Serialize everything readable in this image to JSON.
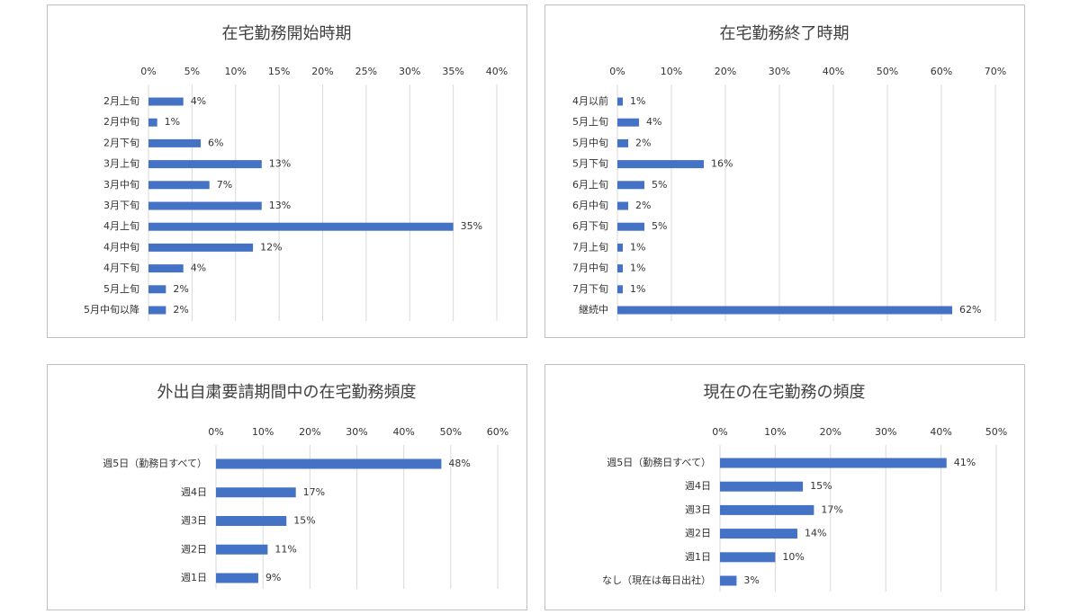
{
  "chart_data": [
    {
      "type": "bar",
      "title": "在宅勤務開始時期",
      "categories": [
        "2月上旬",
        "2月中旬",
        "2月下旬",
        "3月上旬",
        "3月中旬",
        "3月下旬",
        "4月上旬",
        "4月中旬",
        "4月下旬",
        "5月上旬",
        "5月中旬以降"
      ],
      "values": [
        4,
        1,
        6,
        13,
        7,
        13,
        35,
        12,
        4,
        2,
        2
      ],
      "value_labels": [
        "4%",
        "1%",
        "6%",
        "13%",
        "7%",
        "13%",
        "35%",
        "12%",
        "4%",
        "2%",
        "2%"
      ],
      "color": "#4472c4",
      "grid": true,
      "xlim": [
        0,
        40
      ],
      "xticks": [
        {
          "value": 0,
          "label": "0%"
        },
        {
          "value": 5,
          "label": "5%"
        },
        {
          "value": 10,
          "label": "10%"
        },
        {
          "value": 15,
          "label": "15%"
        },
        {
          "value": 20,
          "label": "20%"
        },
        {
          "value": 25,
          "label": "25%"
        },
        {
          "value": 30,
          "label": "30%"
        },
        {
          "value": 35,
          "label": "35%"
        },
        {
          "value": 40,
          "label": "40%"
        }
      ]
    },
    {
      "type": "bar",
      "title": "在宅勤務終了時期",
      "categories": [
        "4月以前",
        "5月上旬",
        "5月中旬",
        "5月下旬",
        "6月上旬",
        "6月中旬",
        "6月下旬",
        "7月上旬",
        "7月中旬",
        "7月下旬",
        "継続中"
      ],
      "values": [
        1,
        4,
        2,
        16,
        5,
        2,
        5,
        1,
        1,
        1,
        62
      ],
      "value_labels": [
        "1%",
        "4%",
        "2%",
        "16%",
        "5%",
        "2%",
        "5%",
        "1%",
        "1%",
        "1%",
        "62%"
      ],
      "color": "#4472c4",
      "grid": true,
      "xlim": [
        0,
        70
      ],
      "xticks": [
        {
          "value": 0,
          "label": "0%"
        },
        {
          "value": 10,
          "label": "10%"
        },
        {
          "value": 20,
          "label": "20%"
        },
        {
          "value": 30,
          "label": "30%"
        },
        {
          "value": 40,
          "label": "40%"
        },
        {
          "value": 50,
          "label": "50%"
        },
        {
          "value": 60,
          "label": "60%"
        },
        {
          "value": 70,
          "label": "70%"
        }
      ]
    },
    {
      "type": "bar",
      "title": "外出自粛要請期間中の在宅勤務頻度",
      "categories": [
        "週5日（勤務日すべて）",
        "週4日",
        "週3日",
        "週2日",
        "週1日"
      ],
      "values": [
        48,
        17,
        15,
        11,
        9
      ],
      "value_labels": [
        "48%",
        "17%",
        "15%",
        "11%",
        "9%"
      ],
      "color": "#4472c4",
      "grid": true,
      "xlim": [
        0,
        60
      ],
      "xticks": [
        {
          "value": 0,
          "label": "0%"
        },
        {
          "value": 10,
          "label": "10%"
        },
        {
          "value": 20,
          "label": "20%"
        },
        {
          "value": 30,
          "label": "30%"
        },
        {
          "value": 40,
          "label": "40%"
        },
        {
          "value": 50,
          "label": "50%"
        },
        {
          "value": 60,
          "label": "60%"
        }
      ]
    },
    {
      "type": "bar",
      "title": "現在の在宅勤務の頻度",
      "categories": [
        "週5日（勤務日すべて）",
        "週4日",
        "週3日",
        "週2日",
        "週1日",
        "なし（現在は毎日出社）"
      ],
      "values": [
        41,
        15,
        17,
        14,
        10,
        3
      ],
      "value_labels": [
        "41%",
        "15%",
        "17%",
        "14%",
        "10%",
        "3%"
      ],
      "color": "#4472c4",
      "grid": true,
      "xlim": [
        0,
        50
      ],
      "xticks": [
        {
          "value": 0,
          "label": "0%"
        },
        {
          "value": 10,
          "label": "10%"
        },
        {
          "value": 20,
          "label": "20%"
        },
        {
          "value": 30,
          "label": "30%"
        },
        {
          "value": 40,
          "label": "40%"
        },
        {
          "value": 50,
          "label": "50%"
        }
      ]
    }
  ]
}
